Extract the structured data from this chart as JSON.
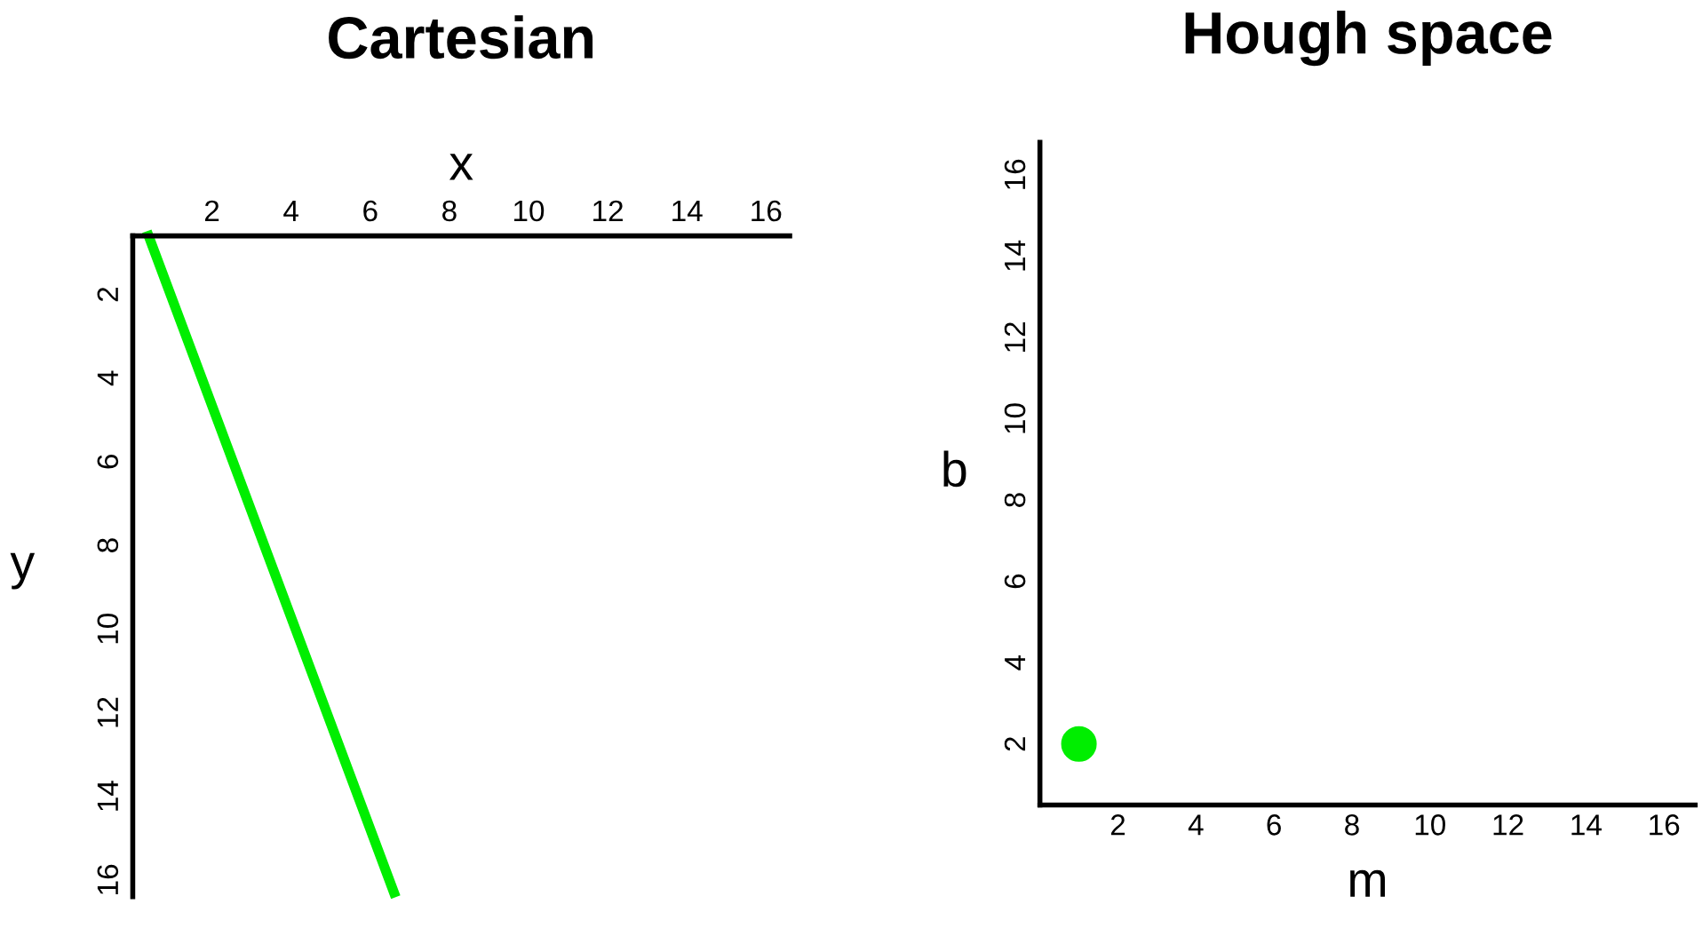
{
  "chart_data": [
    {
      "type": "line",
      "title": "Cartesian",
      "xlabel": "x",
      "ylabel": "y",
      "x": [
        0.4,
        6.6
      ],
      "series": [
        {
          "color": "#00ee00",
          "values": [
            0.6,
            16.3
          ]
        }
      ],
      "xlim": [
        0,
        16.6
      ],
      "xticks": [
        2,
        4,
        6,
        8,
        10,
        12,
        14,
        16
      ],
      "ylim": [
        16.4,
        0.6
      ],
      "yticks": [
        2,
        4,
        6,
        8,
        10,
        12,
        14,
        16
      ],
      "grid": false,
      "legend": false,
      "marker": "none",
      "line_style": "solid"
    },
    {
      "type": "scatter",
      "title": "Hough space",
      "xlabel": "m",
      "ylabel": "b",
      "x": [
        1
      ],
      "series": [
        {
          "color": "#00ee00",
          "values": [
            2
          ]
        }
      ],
      "xlim": [
        0,
        16.8
      ],
      "xticks": [
        2,
        4,
        6,
        8,
        10,
        12,
        14,
        16
      ],
      "ylim": [
        0.5,
        16.8
      ],
      "yticks": [
        2,
        4,
        6,
        8,
        10,
        12,
        14,
        16
      ],
      "grid": false,
      "legend": false,
      "marker": "circle"
    }
  ]
}
